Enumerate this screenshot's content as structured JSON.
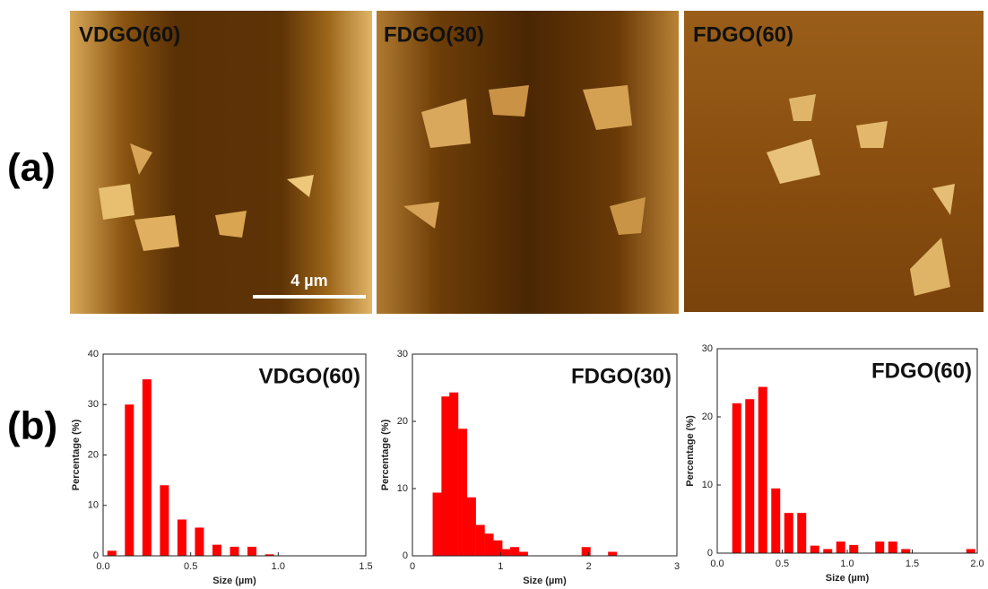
{
  "panel_labels": [
    "(a)",
    "(b)"
  ],
  "images": [
    {
      "label": "VDGO(60)"
    },
    {
      "label": "FDGO(30)"
    },
    {
      "label": "FDGO(60)"
    }
  ],
  "scale_bar": "4 µm",
  "chart_data": [
    {
      "type": "bar",
      "title": "VDGO(60)",
      "x_label": "Size (µm)",
      "y_label": "Percentage (%)",
      "color": "#ff0000",
      "x": [
        0.05,
        0.15,
        0.25,
        0.35,
        0.45,
        0.55,
        0.65,
        0.75,
        0.85,
        0.95
      ],
      "values": [
        1,
        30,
        35,
        14,
        7.2,
        5.6,
        2.2,
        1.8,
        1.8,
        0.3
      ],
      "xlim": [
        0,
        1.5
      ],
      "xticks": [
        {
          "value": 0,
          "label": "0.0"
        },
        0.5,
        {
          "value": 1,
          "label": "1.0"
        },
        1.5
      ],
      "ylim": [
        0,
        40
      ],
      "yticks": [
        0,
        10,
        20,
        30,
        40
      ]
    },
    {
      "type": "bar",
      "title": "FDGO(30)",
      "x_label": "Size (µm)",
      "y_label": "Percentage (%)",
      "color": "#ff0000",
      "x": [
        0.28,
        0.38,
        0.47,
        0.57,
        0.67,
        0.77,
        0.87,
        0.97,
        1.06,
        1.16,
        1.26,
        1.97,
        2.27
      ],
      "values": [
        9.4,
        23.7,
        24.3,
        18.9,
        8.7,
        4.6,
        3.3,
        2.3,
        1.0,
        1.3,
        0.6,
        1.3,
        0.6
      ],
      "xlim": [
        0,
        3
      ],
      "xticks": [
        0,
        1,
        2,
        3
      ],
      "ylim": [
        0,
        30
      ],
      "yticks": [
        0,
        10,
        20,
        30
      ]
    },
    {
      "type": "bar",
      "title": "FDGO(60)",
      "x_label": "Size (µm)",
      "y_label": "Percentage (%)",
      "color": "#ff0000",
      "x": [
        0.15,
        0.25,
        0.35,
        0.45,
        0.55,
        0.65,
        0.75,
        0.85,
        0.95,
        1.05,
        1.25,
        1.35,
        1.45,
        1.95
      ],
      "values": [
        22,
        22.6,
        24.4,
        9.5,
        5.9,
        5.9,
        1.1,
        0.6,
        1.7,
        1.2,
        1.7,
        1.7,
        0.6,
        0.6
      ],
      "xlim": [
        0,
        2
      ],
      "xticks": [
        {
          "value": 0,
          "label": "0.0"
        },
        0.5,
        {
          "value": 1,
          "label": "1.0"
        },
        1.5,
        {
          "value": 2,
          "label": "2.0"
        }
      ],
      "ylim": [
        0,
        30
      ],
      "yticks": [
        0,
        10,
        20,
        30
      ]
    }
  ]
}
